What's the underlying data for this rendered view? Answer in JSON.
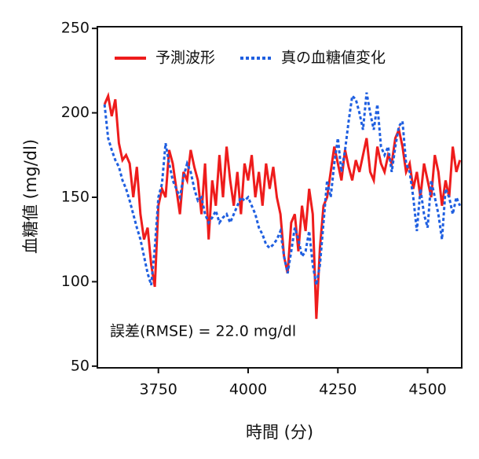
{
  "chart_data": {
    "type": "line",
    "x_label": "時間 (分)",
    "y_label": "血糖値 (mg/dl)",
    "annotation": "誤差(RMSE) = 22.0 mg/dl",
    "xlim": [
      3580,
      4595
    ],
    "xticks": [
      3750,
      4000,
      4250,
      4500
    ],
    "ylim": [
      49,
      251
    ],
    "yticks": [
      50,
      100,
      150,
      200,
      250
    ],
    "legend": "upper right",
    "x": [
      3600,
      3610,
      3620,
      3630,
      3640,
      3650,
      3660,
      3670,
      3680,
      3690,
      3700,
      3710,
      3720,
      3730,
      3740,
      3750,
      3760,
      3770,
      3780,
      3790,
      3800,
      3810,
      3820,
      3830,
      3840,
      3850,
      3860,
      3870,
      3880,
      3890,
      3900,
      3910,
      3920,
      3930,
      3940,
      3950,
      3960,
      3970,
      3980,
      3990,
      4000,
      4010,
      4020,
      4030,
      4040,
      4050,
      4060,
      4070,
      4080,
      4090,
      4100,
      4110,
      4120,
      4130,
      4140,
      4150,
      4160,
      4170,
      4180,
      4190,
      4200,
      4210,
      4220,
      4230,
      4240,
      4250,
      4260,
      4270,
      4280,
      4290,
      4300,
      4310,
      4320,
      4330,
      4340,
      4350,
      4360,
      4370,
      4380,
      4390,
      4400,
      4410,
      4420,
      4430,
      4440,
      4450,
      4460,
      4470,
      4480,
      4490,
      4500,
      4510,
      4520,
      4530,
      4540,
      4550,
      4560,
      4570,
      4580,
      4590
    ],
    "series": [
      {
        "name": "予測波形",
        "color": "#ee1c1c",
        "linestyle": "solid",
        "values": [
          205,
          210,
          198,
          208,
          182,
          172,
          175,
          170,
          150,
          168,
          140,
          125,
          132,
          110,
          97,
          145,
          155,
          150,
          178,
          170,
          155,
          140,
          165,
          160,
          178,
          168,
          160,
          140,
          170,
          125,
          160,
          145,
          175,
          150,
          180,
          160,
          145,
          165,
          140,
          170,
          160,
          175,
          150,
          165,
          145,
          170,
          155,
          168,
          150,
          140,
          115,
          105,
          135,
          140,
          118,
          145,
          130,
          155,
          140,
          78,
          120,
          145,
          150,
          165,
          180,
          170,
          160,
          178,
          168,
          160,
          172,
          165,
          175,
          185,
          165,
          160,
          180,
          170,
          165,
          175,
          170,
          185,
          190,
          180,
          165,
          170,
          155,
          165,
          150,
          170,
          160,
          150,
          175,
          165,
          145,
          160,
          150,
          180,
          165,
          172
        ]
      },
      {
        "name": "真の血糖値変化",
        "color": "#1f5fe0",
        "linestyle": "dotted",
        "values": [
          205,
          185,
          178,
          172,
          168,
          160,
          155,
          148,
          140,
          132,
          125,
          115,
          105,
          98,
          120,
          150,
          158,
          182,
          170,
          160,
          155,
          150,
          162,
          170,
          165,
          155,
          148,
          150,
          140,
          135,
          138,
          142,
          135,
          138,
          140,
          135,
          140,
          145,
          150,
          148,
          150,
          145,
          140,
          132,
          128,
          122,
          120,
          122,
          125,
          130,
          115,
          105,
          118,
          132,
          125,
          115,
          118,
          130,
          110,
          98,
          110,
          135,
          160,
          150,
          170,
          185,
          165,
          178,
          195,
          210,
          208,
          200,
          190,
          212,
          200,
          190,
          205,
          180,
          175,
          180,
          165,
          180,
          192,
          195,
          170,
          165,
          150,
          130,
          155,
          140,
          132,
          160,
          150,
          140,
          125,
          155,
          150,
          140,
          150,
          145
        ]
      }
    ]
  }
}
